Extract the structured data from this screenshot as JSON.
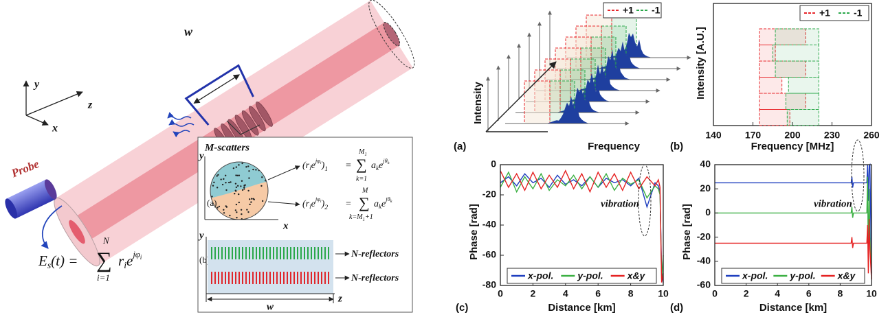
{
  "diagram": {
    "axis_y": "y",
    "axis_z": "z",
    "axis_x": "x",
    "probe": "Probe",
    "width": "w",
    "formula_es": {
      "lhs": [
        "E",
        "s",
        "(t) ="
      ],
      "sum": "∑",
      "upper": "N",
      "lower": "i=1",
      "rhs": [
        "r",
        "i",
        "e",
        "jφ",
        "i"
      ]
    },
    "inset": {
      "title": "M-scatters",
      "axis_y": "y",
      "axis_x": "x",
      "label_a": "(a)",
      "label_b": "(b)",
      "formula_1": {
        "lhs": [
          "(r",
          "i",
          "e",
          "jφ",
          "i",
          ")",
          "1"
        ],
        "eq": "=",
        "sum": "∑",
        "upper": [
          "M",
          "1"
        ],
        "lower": "k=1",
        "rhs": [
          "a",
          "k",
          "e",
          "jθ",
          "k"
        ]
      },
      "formula_2": {
        "lhs": [
          "(r",
          "i",
          "e",
          "jφ",
          "i",
          ")",
          "2"
        ],
        "eq": "=",
        "sum": "∑",
        "upper": "M",
        "lower": [
          "k=M",
          "1",
          "+1"
        ],
        "rhs": [
          "a",
          "k",
          "e",
          "jθ",
          "k"
        ]
      },
      "axis_y_b": "y",
      "axis_z": "z",
      "width": "w",
      "reflectors": [
        "N-reflectors",
        "N-reflectors"
      ]
    }
  },
  "chart_data": [
    {
      "type": "waterfall",
      "panel_label": "(a)",
      "xlabel": "Frequency",
      "ylabel": "Intensity",
      "legend": "upper right",
      "series": [
        {
          "name": "+1",
          "color": "#e8262b"
        },
        {
          "name": "-1",
          "color": "#2aa84a"
        }
      ]
    },
    {
      "type": "range_bar",
      "panel_label": "(b)",
      "xlabel": "Frequency [MHz]",
      "ylabel": "Intensity [A.U.]",
      "legend": "upper right",
      "xlim": [
        140,
        260
      ],
      "xticks": [
        140,
        170,
        200,
        230,
        260
      ],
      "series": [
        {
          "name": "+1",
          "color": "#e8262b",
          "start": [
            175,
            175,
            175,
            175,
            175,
            175
          ],
          "end": [
            210,
            187,
            210,
            192,
            210,
            198
          ]
        },
        {
          "name": "-1",
          "color": "#2aa84a",
          "start": [
            187,
            185,
            187,
            197,
            195,
            196
          ],
          "end": [
            220,
            220,
            220,
            220,
            220,
            220
          ]
        }
      ]
    },
    {
      "type": "line",
      "panel_label": "(c)",
      "xlabel": "Distance [km]",
      "ylabel": "Phase [rad]",
      "annotation": "vibration",
      "legend": "lower center",
      "xlim": [
        0,
        10
      ],
      "xticks": [
        0,
        2,
        4,
        6,
        8,
        10
      ],
      "ylim": [
        -80,
        0
      ],
      "yticks": [
        0,
        -20,
        -40,
        -60,
        -80
      ],
      "x": [
        0,
        0.5,
        1,
        1.5,
        2,
        2.5,
        3,
        3.5,
        4,
        4.5,
        5,
        5.5,
        6,
        6.5,
        7,
        7.5,
        8,
        8.5,
        9,
        9.5,
        9.7,
        9.8,
        9.9,
        10
      ],
      "series": [
        {
          "name": "x-pol.",
          "color": "#1f3fbf",
          "values": [
            -12,
            -8,
            -14,
            -6,
            -12,
            -9,
            -15,
            -7,
            -13,
            -10,
            -14,
            -8,
            -15,
            -9,
            -12,
            -10,
            -14,
            -9,
            -28,
            -12,
            -14,
            -18,
            -70,
            -78
          ]
        },
        {
          "name": "y-pol.",
          "color": "#3cb043",
          "values": [
            -15,
            -5,
            -18,
            -8,
            -16,
            -6,
            -17,
            -10,
            -14,
            -7,
            -16,
            -8,
            -15,
            -6,
            -17,
            -9,
            -13,
            -10,
            -22,
            -14,
            -16,
            -20,
            -76,
            -60
          ]
        },
        {
          "name": "x&y",
          "color": "#e52222",
          "values": [
            -4,
            -15,
            -6,
            -17,
            -5,
            -16,
            -7,
            -15,
            -4,
            -16,
            -6,
            -18,
            -5,
            -15,
            -6,
            -17,
            -5,
            -16,
            -8,
            -14,
            -10,
            -15,
            -78,
            -72
          ]
        }
      ]
    },
    {
      "type": "line",
      "panel_label": "(d)",
      "xlabel": "Distance [km]",
      "ylabel": "Phase [rad]",
      "annotation": "vibration",
      "legend": "lower center",
      "xlim": [
        0,
        10
      ],
      "xticks": [
        0,
        2,
        4,
        6,
        8,
        10
      ],
      "ylim": [
        -60,
        40
      ],
      "yticks": [
        40,
        20,
        0,
        -20,
        -40,
        -60
      ],
      "x": [
        0,
        2,
        4,
        6,
        8,
        8.7,
        8.75,
        8.8,
        8.85,
        9,
        9.5,
        9.7,
        9.75,
        9.8,
        9.85,
        9.9,
        10
      ],
      "series": [
        {
          "name": "x-pol.",
          "color": "#1f3fbf",
          "values": [
            25,
            25,
            25,
            25,
            25,
            25,
            30,
            21,
            25,
            25,
            25,
            25,
            40,
            10,
            39,
            40,
            -50
          ]
        },
        {
          "name": "y-pol.",
          "color": "#3cb043",
          "values": [
            0,
            0,
            0,
            0,
            0,
            0,
            5,
            -4,
            0,
            0,
            0,
            0,
            30,
            -45,
            20,
            -20,
            -50
          ]
        },
        {
          "name": "x&y",
          "color": "#e52222",
          "values": [
            -25,
            -25,
            -25,
            -25,
            -25,
            -25,
            -20,
            -29,
            -25,
            -25,
            -25,
            -25,
            -10,
            -50,
            -5,
            -30,
            -55
          ]
        }
      ]
    }
  ]
}
